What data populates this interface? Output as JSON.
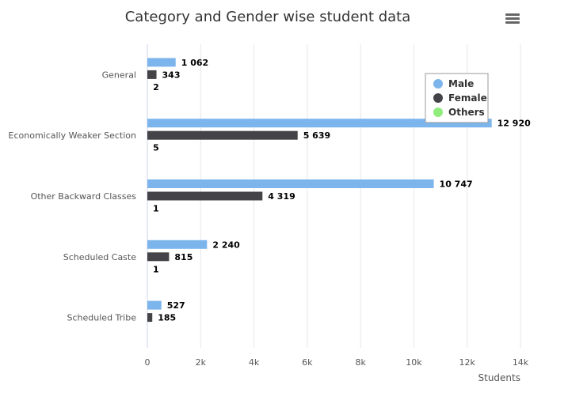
{
  "chart_data": {
    "type": "bar",
    "orientation": "horizontal",
    "title": "Category and Gender wise student data",
    "categories": [
      "General",
      "Economically Weaker Section",
      "Other Backward Classes",
      "Scheduled Caste",
      "Scheduled Tribe"
    ],
    "series": [
      {
        "name": "Male",
        "color": "#7cb5ec",
        "values": [
          1062,
          12920,
          10747,
          2240,
          527
        ],
        "labels": [
          "1 062",
          "12 920",
          "10 747",
          "2 240",
          "527"
        ]
      },
      {
        "name": "Female",
        "color": "#434348",
        "values": [
          343,
          5639,
          4319,
          815,
          185
        ],
        "labels": [
          "343",
          "5 639",
          "4 319",
          "815",
          "185"
        ]
      },
      {
        "name": "Others",
        "color": "#90ed7d",
        "values": [
          2,
          5,
          1,
          1,
          0
        ],
        "labels": [
          "2",
          "5",
          "1",
          "1",
          ""
        ]
      }
    ],
    "xlabel": "Students",
    "ylabel": "",
    "xlim": [
      0,
      14000
    ],
    "ticks": [
      0,
      2000,
      4000,
      6000,
      8000,
      10000,
      12000,
      14000
    ],
    "tick_labels": [
      "0",
      "2k",
      "4k",
      "6k",
      "8k",
      "10k",
      "12k",
      "14k"
    ],
    "grid": true,
    "legend_position": "top-right"
  },
  "menu": {
    "icon": "hamburger-menu-icon"
  }
}
